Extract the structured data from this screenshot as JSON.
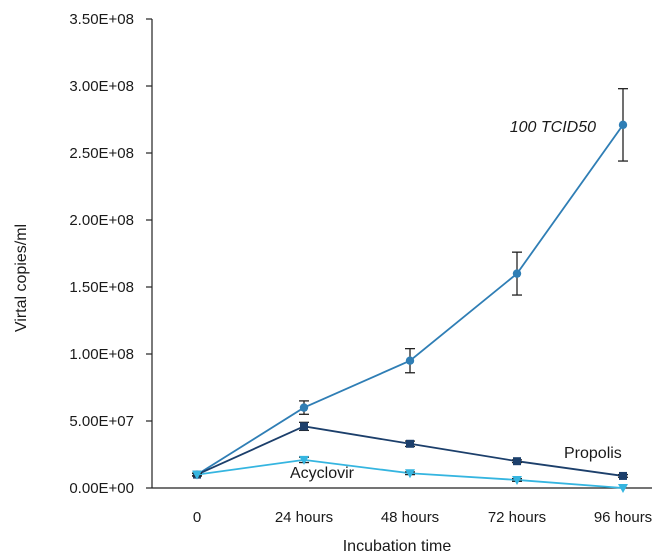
{
  "chart_data": {
    "type": "line",
    "title": "",
    "xlabel": "Incubation time",
    "ylabel": "Virtal copies/ml",
    "categories": [
      "0",
      "24 hours",
      "48 hours",
      "72 hours",
      "96 hours"
    ],
    "ylim": [
      0,
      350000000
    ],
    "yticks": [
      {
        "value": 0,
        "label": "0.00E+00"
      },
      {
        "value": 50000000,
        "label": "5.00E+07"
      },
      {
        "value": 100000000,
        "label": "1.00E+08"
      },
      {
        "value": 150000000,
        "label": "1.50E+08"
      },
      {
        "value": 200000000,
        "label": "2.00E+08"
      },
      {
        "value": 250000000,
        "label": "2.50E+08"
      },
      {
        "value": 300000000,
        "label": "3.00E+08"
      },
      {
        "value": 350000000,
        "label": "3.50E+08"
      }
    ],
    "grid": false,
    "legend": "none",
    "series": [
      {
        "name": "100 TCID50",
        "color": "#2f7eb5",
        "marker": "circle",
        "values": [
          10000000,
          60000000,
          95000000,
          160000000,
          271000000
        ],
        "errors": [
          1000000,
          5000000,
          9000000,
          16000000,
          27000000
        ]
      },
      {
        "name": "Propolis",
        "color": "#1c3f6b",
        "marker": "square",
        "values": [
          10000000,
          46000000,
          33000000,
          20000000,
          9000000
        ],
        "errors": [
          1000000,
          3000000,
          2000000,
          1000000,
          1000000
        ]
      },
      {
        "name": "Acyclovir",
        "color": "#35b5e0",
        "marker": "triangle",
        "values": [
          10000000,
          21000000,
          11000000,
          6000000,
          0
        ],
        "errors": [
          1000000,
          2000000,
          1000000,
          1000000,
          0
        ]
      }
    ]
  }
}
